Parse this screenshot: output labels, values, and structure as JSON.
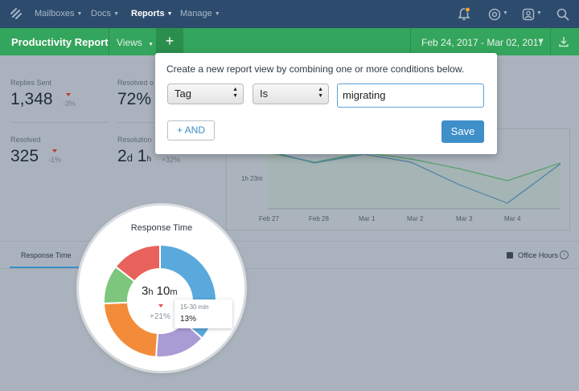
{
  "topnav": {
    "items": [
      {
        "label": "Mailboxes"
      },
      {
        "label": "Docs"
      },
      {
        "label": "Reports"
      },
      {
        "label": "Manage"
      }
    ]
  },
  "header": {
    "title": "Productivity Report",
    "views_label": "Views",
    "add_label": "+",
    "date_range": "Feb 24, 2017 - Mar 02, 2017"
  },
  "stats": [
    {
      "label": "Replies Sent",
      "value": "1,348",
      "delta": "-3%"
    },
    {
      "label": "Resolved o",
      "value": "72%"
    },
    {
      "label": "Resolved",
      "value": "325",
      "delta": "-1%"
    },
    {
      "label": "Resolution",
      "value_num1": "2",
      "value_unit1": "d",
      "value_num2": "1",
      "value_unit2": "h",
      "delta": "+32%"
    }
  ],
  "chart": {
    "ylabel_tick": "1h 23m",
    "x_ticks": [
      "Feb 27",
      "Feb 28",
      "Mar 1",
      "Mar 2",
      "Mar 3",
      "Mar 4"
    ]
  },
  "tabs": {
    "response_time": "Response Time",
    "office_hours": "Office Hours",
    "info": "i"
  },
  "modal": {
    "instruction": "Create a new report view by combining one or more conditions below.",
    "field_select": "Tag",
    "operator_select": "Is",
    "value_input": "migrating",
    "and_button": "+ AND",
    "save_button": "Save"
  },
  "response_time": {
    "title": "Response Time",
    "value_hours": "3",
    "unit_hours": "h",
    "value_minutes": "10",
    "unit_minutes": "m",
    "delta": "+21%",
    "tooltip_range": "15-30 min",
    "tooltip_value": "13%",
    "segment_colors": [
      "#5aa9dc",
      "#a99bd4",
      "#f28c3a",
      "#7dc67d",
      "#e8625c"
    ]
  }
}
